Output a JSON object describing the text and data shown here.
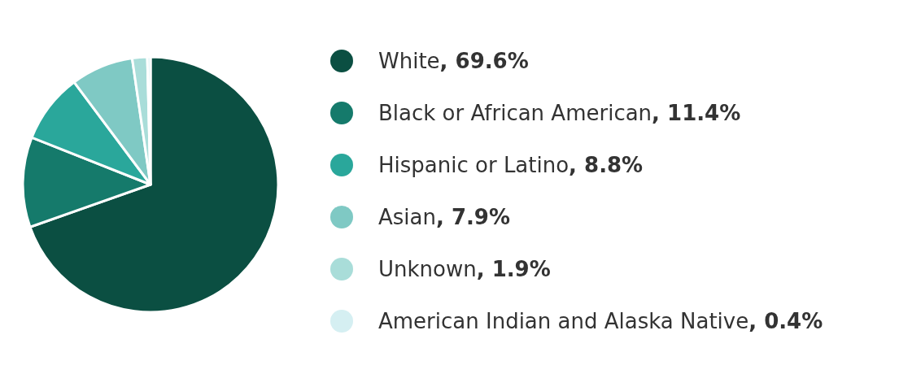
{
  "chart_data": {
    "type": "pie",
    "categories": [
      "White",
      "Black or African American",
      "Hispanic or Latino",
      "Asian",
      "Unknown",
      "American Indian and Alaska Native"
    ],
    "values": [
      69.6,
      11.4,
      8.8,
      7.9,
      1.9,
      0.4
    ],
    "value_labels": [
      ", 69.6%",
      ", 11.4%",
      ", 8.8%",
      ", 7.9%",
      ", 1.9%",
      ", 0.4%"
    ],
    "colors": [
      "#0b4f42",
      "#157a6b",
      "#2aa79b",
      "#7fc9c4",
      "#a9ddd9",
      "#d5eff2"
    ],
    "legend": "right"
  }
}
